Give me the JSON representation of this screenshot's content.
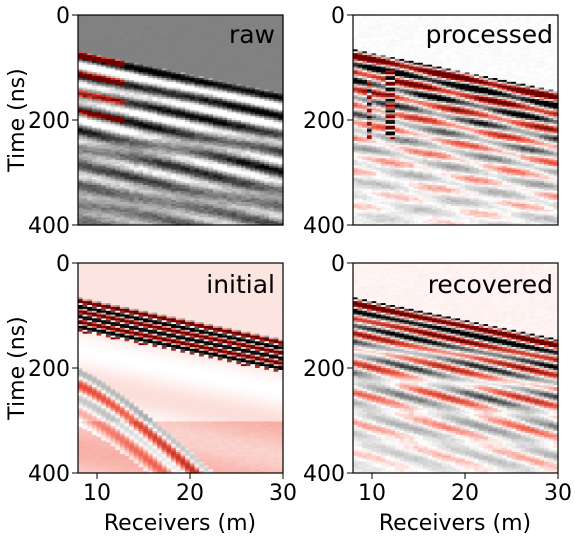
{
  "chart_data": {
    "type": "heatmap",
    "colormap": "RdGy_r",
    "xlabel": "Receivers (m)",
    "ylabel": "Time (ns)",
    "xlim": [
      8,
      30
    ],
    "ylim": [
      400,
      0
    ],
    "xticks": [
      "10",
      "20",
      "30"
    ],
    "yticks": [
      "0",
      "200",
      "400"
    ],
    "first_arrival": {
      "x": [
        8,
        30
      ],
      "t": [
        70,
        150
      ]
    },
    "panels": [
      {
        "label": "raw",
        "style": "raw"
      },
      {
        "label": "processed",
        "style": "processed"
      },
      {
        "label": "initial",
        "style": "initial"
      },
      {
        "label": "recovered",
        "style": "recovered"
      }
    ]
  }
}
